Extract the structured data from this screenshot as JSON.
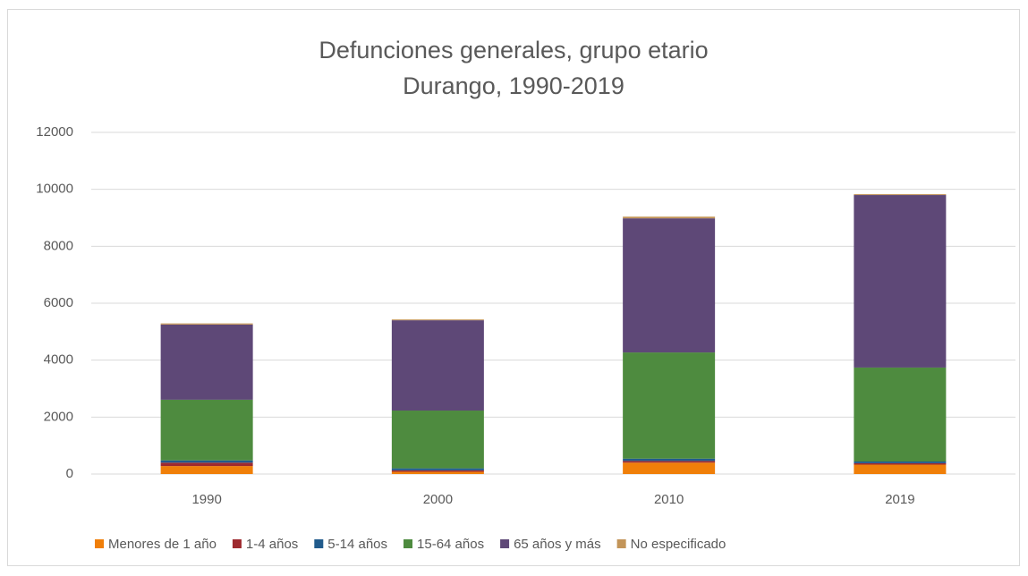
{
  "chart_data": {
    "type": "stacked_bar",
    "title": "Defunciones generales, grupo etario",
    "subtitle": "Durango, 1990-2019",
    "categories": [
      "1990",
      "2000",
      "2010",
      "2019"
    ],
    "series": [
      {
        "name": "Menores de 1 año",
        "color": "#f07f09",
        "values": [
          280,
          80,
          400,
          330
        ]
      },
      {
        "name": "1-4 años",
        "color": "#9e2a2f",
        "values": [
          120,
          50,
          60,
          50
        ]
      },
      {
        "name": "5-14 años",
        "color": "#215b8c",
        "values": [
          80,
          70,
          80,
          60
        ]
      },
      {
        "name": "15-64 años",
        "color": "#4e8b3f",
        "values": [
          2130,
          2030,
          3730,
          3300
        ]
      },
      {
        "name": "65 años y más",
        "color": "#5e4877",
        "values": [
          2640,
          3170,
          4710,
          6060
        ]
      },
      {
        "name": "No especificado",
        "color": "#c39559",
        "values": [
          40,
          30,
          60,
          30
        ]
      }
    ],
    "ylim": [
      0,
      12000
    ],
    "yticks": [
      0,
      2000,
      4000,
      6000,
      8000,
      10000,
      12000
    ],
    "grid": true
  }
}
